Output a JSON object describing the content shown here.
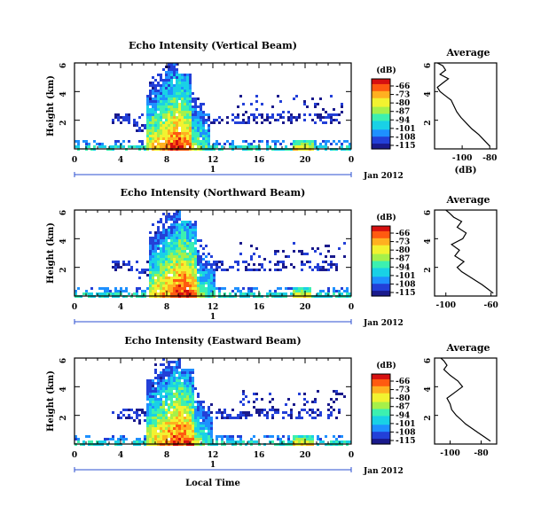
{
  "figure": {
    "xlabel": "Local Time",
    "date_label": "Jan 2012",
    "day_label": "1",
    "colorbar_unit": "(dB)",
    "profile_title": "Average",
    "profile_xlabel": "(dB)"
  },
  "colors": {
    "colormap": [
      "#1a1a8c",
      "#2340d8",
      "#1e90ff",
      "#19d1e6",
      "#3cf0b0",
      "#a6f04a",
      "#f2f230",
      "#ffb020",
      "#ff5a10",
      "#d61010"
    ],
    "axis": "#000000",
    "time_axis": "#2b4fd0"
  },
  "chart_data": [
    {
      "type": "heatmap",
      "title": "Echo Intensity (Vertical Beam)",
      "ylabel": "Height (km)",
      "xlim": [
        0,
        24
      ],
      "ylim": [
        0,
        6
      ],
      "xticks": [
        "0",
        "4",
        "8",
        "12",
        "16",
        "20",
        "0"
      ],
      "yticks": [
        "2",
        "4",
        "6"
      ],
      "colorbar_ticks": [
        "-66",
        "-73",
        "-80",
        "-87",
        "-94",
        "-101",
        "-108",
        "-115"
      ],
      "storm": [
        6.2,
        11.6
      ],
      "side_cell": 19.8,
      "profile": {
        "xlim": [
          -120,
          -75
        ],
        "xticks": [
          "-100",
          "-80"
        ],
        "yticks": [
          "2",
          "4",
          "6"
        ],
        "x": [
          -80,
          -84,
          -88,
          -93,
          -97,
          -101,
          -104,
          -106,
          -108,
          -112,
          -116,
          -118,
          -114,
          -110,
          -116,
          -112,
          -114,
          -118
        ],
        "y": [
          0.2,
          0.6,
          1.0,
          1.4,
          1.8,
          2.2,
          2.6,
          3.0,
          3.4,
          3.7,
          4.0,
          4.3,
          4.6,
          4.9,
          5.2,
          5.5,
          5.8,
          6.0
        ]
      }
    },
    {
      "type": "heatmap",
      "title": "Echo Intensity (Northward Beam)",
      "ylabel": "Height (km)",
      "xlim": [
        0,
        24
      ],
      "ylim": [
        0,
        6
      ],
      "xticks": [
        "0",
        "4",
        "8",
        "12",
        "16",
        "20",
        "0"
      ],
      "yticks": [
        "2",
        "4",
        "6"
      ],
      "colorbar_ticks": [
        "-66",
        "-73",
        "-80",
        "-87",
        "-94",
        "-101",
        "-108",
        "-115"
      ],
      "storm": [
        6.4,
        12.0
      ],
      "side_cell": 19.6,
      "profile": {
        "xlim": [
          -110,
          -55
        ],
        "xticks": [
          "-100",
          "-60"
        ],
        "yticks": [
          "2",
          "4",
          "6"
        ],
        "x": [
          -58,
          -63,
          -68,
          -74,
          -80,
          -86,
          -90,
          -84,
          -92,
          -88,
          -95,
          -85,
          -82,
          -90,
          -86,
          -93,
          -97,
          -100
        ],
        "y": [
          0.2,
          0.5,
          0.8,
          1.1,
          1.4,
          1.7,
          2.0,
          2.4,
          2.8,
          3.2,
          3.6,
          4.0,
          4.4,
          4.8,
          5.2,
          5.5,
          5.8,
          6.0
        ]
      }
    },
    {
      "type": "heatmap",
      "title": "Echo Intensity (Eastward Beam)",
      "ylabel": "Height (km)",
      "xlim": [
        0,
        24
      ],
      "ylim": [
        0,
        6
      ],
      "xticks": [
        "0",
        "4",
        "8",
        "12",
        "16",
        "20",
        "0"
      ],
      "yticks": [
        "2",
        "4",
        "6"
      ],
      "colorbar_ticks": [
        "-66",
        "-73",
        "-80",
        "-87",
        "-94",
        "-101",
        "-108",
        "-115"
      ],
      "storm": [
        6.2,
        11.8
      ],
      "side_cell": 19.8,
      "profile": {
        "xlim": [
          -110,
          -70
        ],
        "xticks": [
          "-100",
          "-80"
        ],
        "yticks": [
          "2",
          "4",
          "6"
        ],
        "x": [
          -74,
          -78,
          -82,
          -86,
          -90,
          -93,
          -96,
          -99,
          -100,
          -102,
          -97,
          -92,
          -95,
          -100,
          -104,
          -102,
          -104,
          -106
        ],
        "y": [
          0.2,
          0.5,
          0.8,
          1.1,
          1.4,
          1.7,
          2.0,
          2.4,
          2.8,
          3.2,
          3.6,
          4.0,
          4.4,
          4.8,
          5.2,
          5.5,
          5.8,
          6.0
        ]
      }
    }
  ]
}
